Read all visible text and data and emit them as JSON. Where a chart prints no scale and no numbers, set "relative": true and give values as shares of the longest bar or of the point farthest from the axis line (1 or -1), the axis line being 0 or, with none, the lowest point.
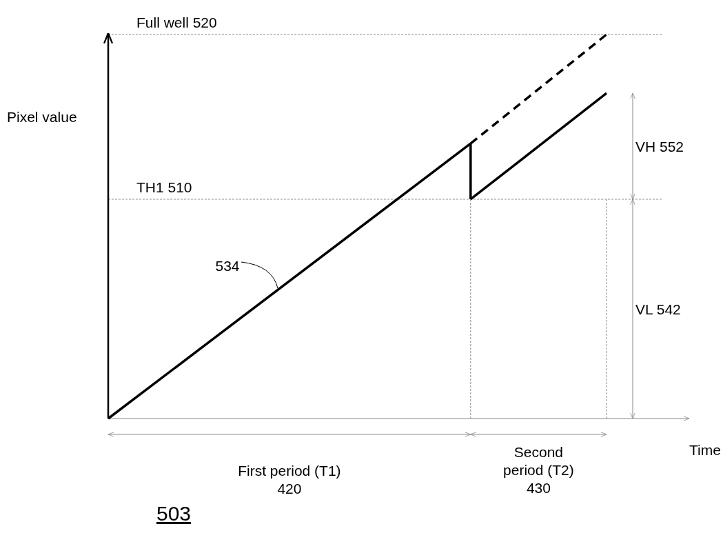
{
  "chart_data": {
    "type": "line",
    "relative": true,
    "ylabel": "Pixel value",
    "xlabel": "Time",
    "categories": [
      null,
      null,
      null,
      null,
      null,
      null,
      null,
      null,
      null,
      null,
      null,
      null
    ],
    "series": [
      {
        "color": "#000000",
        "values": [
          0,
          null,
          null,
          null,
          null,
          null,
          null,
          null,
          0.716,
          null,
          null,
          null
        ],
        "line_style": "solid"
      },
      {
        "color": "#000000",
        "values": [
          null,
          null,
          null,
          null,
          null,
          null,
          null,
          null,
          0.571,
          null,
          null,
          0.847
        ],
        "line_style": "solid"
      },
      {
        "color": "#000000",
        "values": [
          null,
          null,
          null,
          null,
          null,
          null,
          null,
          null,
          0.716,
          null,
          null,
          1
        ],
        "line_style": "dashed"
      }
    ],
    "ref_lines": [
      {
        "axis": "y",
        "value": 1,
        "label": "Full well 520",
        "color": "#888888",
        "line_style": "dashed"
      },
      {
        "axis": "y",
        "value": 0.571,
        "label": "TH1 510",
        "color": "#888888",
        "line_style": "dashed"
      }
    ],
    "annotations": [
      "534",
      "VH 552",
      "VL 542",
      "First period (T1)\n420",
      "Second\nperiod (T2)\n430",
      "503"
    ]
  }
}
